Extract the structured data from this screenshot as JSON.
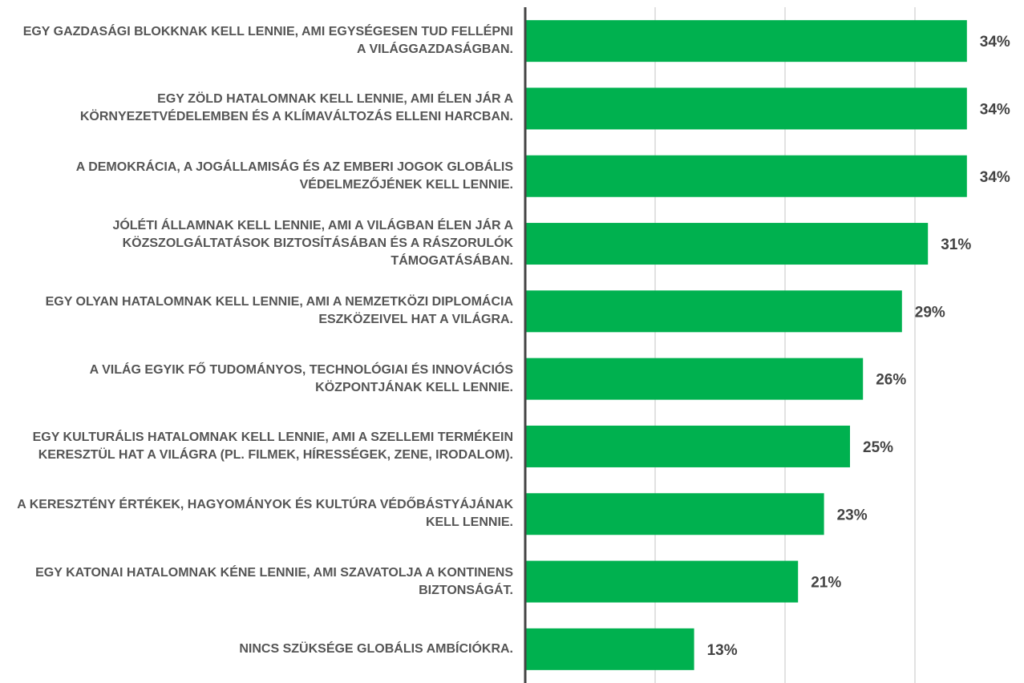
{
  "chart_data": {
    "type": "bar",
    "orientation": "horizontal",
    "categories": [
      "EGY GAZDASÁGI BLOKKNAK KELL LENNIE, AMI EGYSÉGESEN TUD FELLÉPNI A VILÁGGAZDASÁGBAN.",
      "EGY ZÖLD HATALOMNAK KELL LENNIE, AMI ÉLEN JÁR A KÖRNYEZETVÉDELEMBEN ÉS A KLÍMAVÁLTOZÁS ELLENI HARCBAN.",
      "A DEMOKRÁCIA, A JOGÁLLAMISÁG ÉS AZ EMBERI JOGOK GLOBÁLIS VÉDELMEZŐJÉNEK KELL LENNIE.",
      "JÓLÉTI ÁLLAMNAK KELL LENNIE, AMI A VILÁGBAN ÉLEN JÁR A KÖZSZOLGÁLTATÁSOK BIZTOSÍTÁSÁBAN ÉS A RÁSZORULÓK TÁMOGATÁSÁBAN.",
      "EGY OLYAN HATALOMNAK KELL LENNIE, AMI A NEMZETKÖZI DIPLOMÁCIA ESZKÖZEIVEL HAT A VILÁGRA.",
      "A VILÁG EGYIK FŐ TUDOMÁNYOS, TECHNOLÓGIAI ÉS INNOVÁCIÓS KÖZPONTJÁNAK KELL LENNIE.",
      "EGY KULTURÁLIS HATALOMNAK KELL LENNIE, AMI A SZELLEMI TERMÉKEIN KERESZTÜL HAT A VILÁGRA (PL. FILMEK, HÍRESSÉGEK, ZENE, IRODALOM).",
      "A KERESZTÉNY ÉRTÉKEK, HAGYOMÁNYOK ÉS KULTÚRA VÉDŐBÁSTYÁJÁNAK KELL LENNIE.",
      "EGY KATONAI HATALOMNAK KÉNE LENNIE, AMI SZAVATOLJA A KONTINENS BIZTONSÁGÁT.",
      "NINCS SZÜKSÉGE GLOBÁLIS AMBÍCIÓKRA."
    ],
    "values": [
      34,
      34,
      34,
      31,
      29,
      26,
      25,
      23,
      21,
      13
    ],
    "value_labels": [
      "34%",
      "34%",
      "34%",
      "31%",
      "29%",
      "26%",
      "25%",
      "23%",
      "21%",
      "13%"
    ],
    "color": "#00b14f",
    "xlim": [
      0,
      38
    ],
    "xticks": [
      10,
      20,
      30
    ],
    "grid": true
  }
}
